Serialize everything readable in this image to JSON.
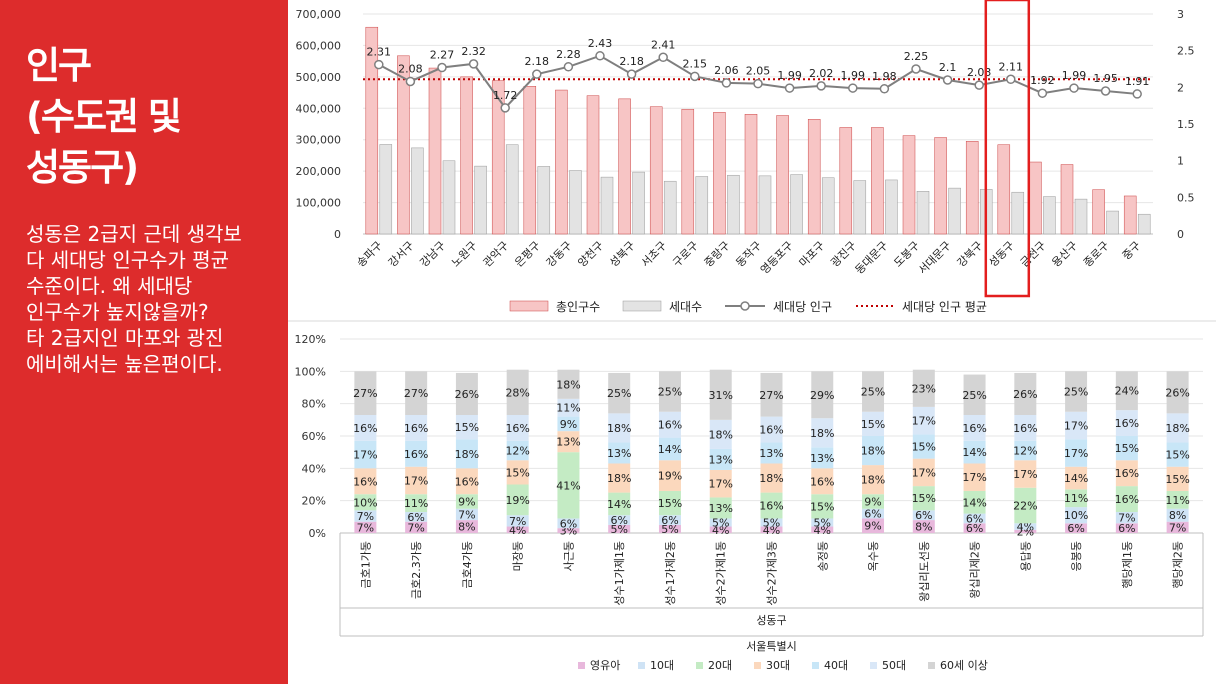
{
  "slide": {
    "title": "인구\n(수도권 및\n성동구)",
    "body": "성동은 2급지 근데 생각보\n다 세대당 인구수가 평균\n수준이다. 왜 세대당\n인구수가 높지않을까?\n타 2급지인 마포와 광진\n에비해서는 높은편이다."
  },
  "chart_data": [
    {
      "type": "bar",
      "categories": [
        "송파구",
        "강서구",
        "강남구",
        "노원구",
        "관악구",
        "은평구",
        "강동구",
        "양천구",
        "성북구",
        "서초구",
        "구로구",
        "중랑구",
        "동작구",
        "영등포구",
        "마포구",
        "광진구",
        "동대문구",
        "도봉구",
        "서대문구",
        "강북구",
        "성동구",
        "금천구",
        "용산구",
        "종로구",
        "중구"
      ],
      "series": [
        {
          "name": "총인구수",
          "type": "bar",
          "color": "#f7c5c5",
          "values": [
            658000,
            567000,
            528000,
            500000,
            488000,
            470000,
            458000,
            440000,
            430000,
            405000,
            397000,
            387000,
            381000,
            377000,
            365000,
            339000,
            339000,
            313000,
            307000,
            295000,
            284000,
            229000,
            221000,
            141000,
            121000
          ]
        },
        {
          "name": "세대수",
          "type": "bar",
          "color": "#e3e3e3",
          "values": [
            285000,
            274000,
            233000,
            216000,
            284000,
            215000,
            202000,
            181000,
            197000,
            168000,
            183000,
            187000,
            185000,
            189000,
            179000,
            170000,
            172000,
            136000,
            146000,
            142000,
            133000,
            119000,
            111000,
            73000,
            63000
          ]
        },
        {
          "name": "세대당 인구",
          "type": "line",
          "axis": "right",
          "color": "#7f7f7f",
          "values": [
            2.31,
            2.08,
            2.27,
            2.32,
            1.72,
            2.18,
            2.28,
            2.43,
            2.18,
            2.41,
            2.15,
            2.06,
            2.05,
            1.99,
            2.02,
            1.99,
            1.98,
            2.25,
            2.1,
            2.03,
            2.11,
            1.92,
            1.99,
            1.95,
            1.91
          ]
        },
        {
          "name": "세대당 인구 평균",
          "type": "line",
          "axis": "right",
          "color": "#c00000",
          "value": 2.11
        }
      ],
      "y_ticks": [
        "0",
        "100,000",
        "200,000",
        "300,000",
        "400,000",
        "500,000",
        "600,000",
        "700,000"
      ],
      "ylim": [
        0,
        700000
      ],
      "y2_ticks": [
        "0",
        "0.5",
        "1",
        "1.5",
        "2",
        "2.5",
        "3"
      ],
      "y2lim": [
        0,
        3
      ],
      "highlight": "성동구",
      "legend_position": "bottom"
    },
    {
      "type": "bar",
      "stacked": true,
      "categories": [
        "금호1가동",
        "금호2.3가동",
        "금호4가동",
        "마장동",
        "사근동",
        "성수1가제1동",
        "성수1가제2동",
        "성수2가제1동",
        "성수2가제3동",
        "송정동",
        "옥수동",
        "왕십리도선동",
        "왕십리제2동",
        "용답동",
        "응봉동",
        "행당제1동",
        "행당제2동"
      ],
      "y_ticks": [
        "0%",
        "20%",
        "40%",
        "60%",
        "80%",
        "100%",
        "120%"
      ],
      "ylim": [
        0,
        120
      ],
      "xlabel": "성동구",
      "xlabel2": "서울특별시",
      "legend_position": "bottom",
      "series": [
        {
          "name": "영유아",
          "color": "#e8b8dc",
          "values": [
            7,
            7,
            8,
            4,
            3,
            5,
            5,
            4,
            4,
            4,
            9,
            8,
            6,
            2,
            6,
            6,
            7
          ]
        },
        {
          "name": "10대",
          "color": "#cfe3f5",
          "values": [
            7,
            6,
            7,
            7,
            6,
            6,
            6,
            5,
            5,
            5,
            6,
            6,
            6,
            4,
            10,
            7,
            8
          ]
        },
        {
          "name": "20대",
          "color": "#c4ebc4",
          "values": [
            10,
            11,
            9,
            19,
            41,
            14,
            15,
            13,
            16,
            15,
            9,
            15,
            14,
            22,
            11,
            16,
            11
          ]
        },
        {
          "name": "30대",
          "color": "#fbd8bd",
          "values": [
            16,
            17,
            16,
            15,
            13,
            18,
            19,
            17,
            18,
            16,
            18,
            17,
            17,
            17,
            14,
            16,
            15
          ]
        },
        {
          "name": "40대",
          "color": "#c8e6f7",
          "values": [
            17,
            16,
            18,
            12,
            9,
            13,
            14,
            13,
            13,
            13,
            18,
            15,
            14,
            12,
            17,
            15,
            15
          ]
        },
        {
          "name": "50대",
          "color": "#d9e7f7",
          "values": [
            16,
            16,
            15,
            16,
            11,
            18,
            16,
            18,
            16,
            18,
            15,
            17,
            16,
            16,
            17,
            16,
            18
          ]
        },
        {
          "name": "60세 이상",
          "color": "#d4d4d4",
          "values": [
            27,
            27,
            26,
            28,
            18,
            25,
            25,
            31,
            27,
            29,
            25,
            23,
            25,
            26,
            25,
            24,
            26
          ]
        }
      ]
    }
  ]
}
